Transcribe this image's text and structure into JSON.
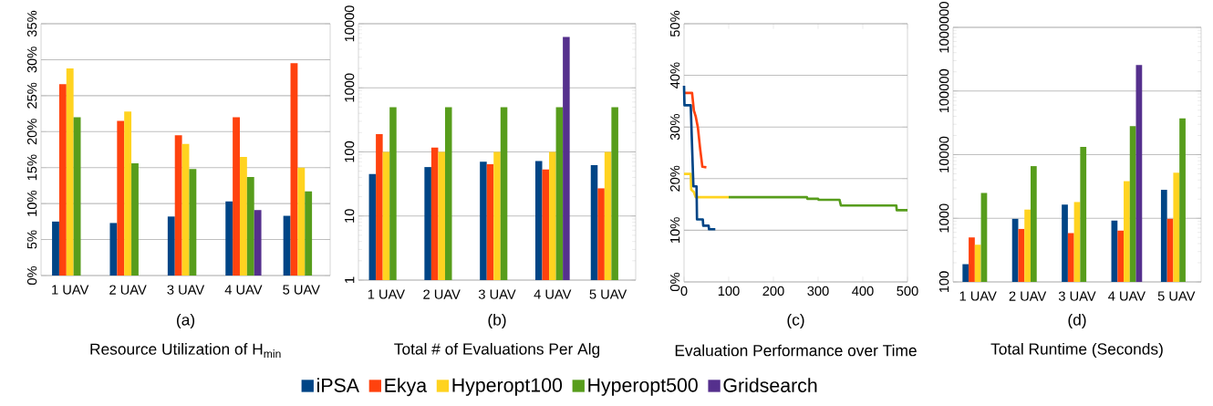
{
  "chart_data": [
    {
      "type": "bar",
      "xlabel": "(a)",
      "annotations": [
        "Resource Utilization of H$_{min}$"
      ],
      "categories": [
        "1 UAV",
        "2 UAV",
        "3 UAV",
        "4 UAV",
        "5 UAV"
      ],
      "ylim": [
        0,
        35
      ],
      "yticks": [
        {
          "value": 0,
          "label": "0%"
        },
        {
          "value": 5,
          "label": "5%"
        },
        {
          "value": 10,
          "label": "10%"
        },
        {
          "value": 15,
          "label": "15%"
        },
        {
          "value": 20,
          "label": "20%"
        },
        {
          "value": 25,
          "label": "25%"
        },
        {
          "value": 30,
          "label": "30%"
        },
        {
          "value": 35,
          "label": "35%"
        }
      ],
      "grid": "y",
      "legend": "bottom",
      "series": [
        {
          "name": "iPSA",
          "color": "#004586",
          "values": [
            7.5,
            7.3,
            8.2,
            10.3,
            8.3
          ]
        },
        {
          "name": "Ekya",
          "color": "#ff420e",
          "values": [
            26.6,
            21.5,
            19.5,
            22.0,
            29.5
          ]
        },
        {
          "name": "Hyperopt100",
          "color": "#ffd320",
          "values": [
            28.8,
            22.8,
            18.3,
            16.5,
            15.0
          ]
        },
        {
          "name": "Hyperopt500",
          "color": "#579d1c",
          "values": [
            22.0,
            15.6,
            14.8,
            13.7,
            11.7
          ]
        },
        {
          "name": "Gridsearch",
          "color": "#55308d",
          "values": [
            null,
            null,
            null,
            9.1,
            null
          ]
        }
      ]
    },
    {
      "type": "bar",
      "xlabel": "(b)",
      "annotations": [
        "Total # of Evaluations Per Alg"
      ],
      "categories": [
        "1 UAV",
        "2 UAV",
        "3 UAV",
        "4 UAV",
        "5 UAV"
      ],
      "log": true,
      "ylim": [
        1,
        10000
      ],
      "yticks": [
        1,
        10,
        100,
        1000,
        10000
      ],
      "grid": "y",
      "series": [
        {
          "color": "#004586",
          "values": [
            45,
            58,
            70,
            72,
            62
          ]
        },
        {
          "color": "#ff420e",
          "values": [
            190,
            117,
            64,
            53,
            27
          ]
        },
        {
          "color": "#ffd320",
          "values": [
            100,
            100,
            100,
            100,
            100
          ]
        },
        {
          "color": "#579d1c",
          "values": [
            500,
            500,
            500,
            500,
            500
          ]
        },
        {
          "color": "#55308d",
          "values": [
            null,
            null,
            null,
            6200,
            null
          ]
        }
      ]
    },
    {
      "type": "line",
      "xlabel": "(c)",
      "annotations": [
        "Evaluation Performance over Time"
      ],
      "xlim": [
        0,
        500
      ],
      "xticks": [
        0,
        100,
        200,
        300,
        400,
        500
      ],
      "ylim": [
        0,
        50
      ],
      "yticks": [
        {
          "value": 0,
          "label": "0%"
        },
        {
          "value": 10,
          "label": "10%"
        },
        {
          "value": 20,
          "label": "20%"
        },
        {
          "value": 30,
          "label": "30%"
        },
        {
          "value": 40,
          "label": "40%"
        },
        {
          "value": 50,
          "label": "50%"
        }
      ],
      "grid": "y",
      "series": [
        {
          "color": "#579d1c",
          "x": [
            100,
            275,
            276,
            300,
            301,
            348,
            351,
            475,
            476,
            500
          ],
          "values": [
            16.4,
            16.4,
            16.1,
            16.1,
            15.9,
            15.9,
            14.8,
            14.8,
            13.9,
            13.9
          ]
        },
        {
          "color": "#ffd320",
          "x": [
            0,
            15,
            16,
            22,
            26,
            100
          ],
          "values": [
            20.9,
            20.9,
            17.9,
            17.4,
            16.4,
            16.4
          ]
        },
        {
          "color": "#ff420e",
          "x": [
            0,
            18,
            22,
            26,
            31,
            36,
            41,
            50
          ],
          "values": [
            36.6,
            36.6,
            33.2,
            32.1,
            29.9,
            25.8,
            22.3,
            22.2
          ]
        },
        {
          "color": "#004586",
          "x": [
            0,
            1,
            15,
            20,
            21,
            28,
            29,
            42,
            43,
            55,
            56,
            70
          ],
          "values": [
            38.0,
            34.2,
            34.2,
            21.0,
            18.5,
            18.5,
            12.1,
            12.1,
            10.9,
            10.9,
            10.2,
            10.2
          ]
        }
      ]
    },
    {
      "type": "bar",
      "xlabel": "(d)",
      "annotations": [
        "Total Runtime (Seconds)"
      ],
      "categories": [
        "1 UAV",
        "2 UAV",
        "3 UAV",
        "4 UAV",
        "5 UAV"
      ],
      "log": true,
      "ylim": [
        100,
        1000000
      ],
      "yticks": [
        100,
        1000,
        10000,
        100000,
        1000000
      ],
      "grid": "y",
      "series": [
        {
          "color": "#004586",
          "values": [
            190,
            980,
            1640,
            920,
            2800
          ]
        },
        {
          "color": "#ff420e",
          "values": [
            500,
            680,
            585,
            640,
            980
          ]
        },
        {
          "color": "#ffd320",
          "values": [
            384,
            1370,
            1800,
            3830,
            5200
          ]
        },
        {
          "color": "#579d1c",
          "values": [
            2500,
            6600,
            13200,
            28000,
            37200
          ]
        },
        {
          "color": "#55308d",
          "values": [
            null,
            null,
            null,
            257000,
            null
          ]
        }
      ]
    }
  ]
}
